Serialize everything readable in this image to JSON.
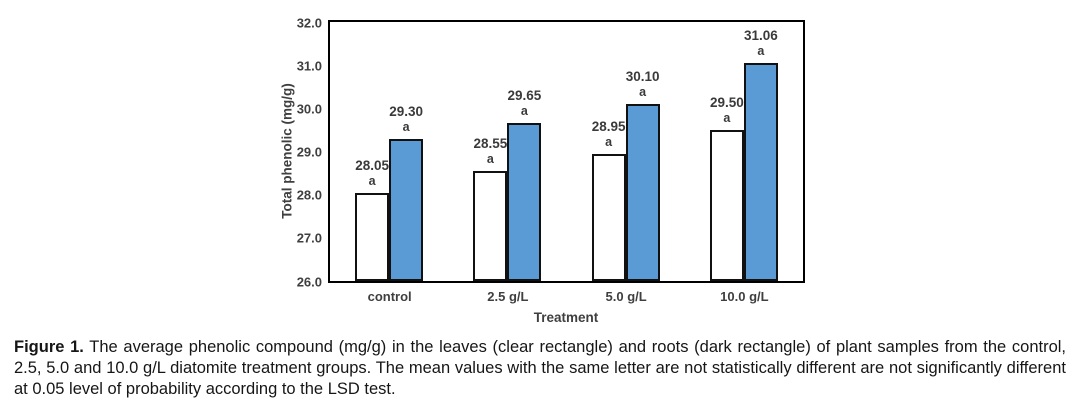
{
  "chart_data": {
    "type": "bar",
    "title": "",
    "xlabel": "Treatment",
    "ylabel": "Total phenolic (mg/g)",
    "ylim": [
      26.0,
      32.0
    ],
    "ytick_labels": [
      "26.0",
      "27.0",
      "28.0",
      "29.0",
      "30.0",
      "31.0",
      "32.0"
    ],
    "grid": false,
    "legend": false,
    "categories": [
      "control",
      "2.5 g/L",
      "5.0 g/L",
      "10.0 g/L"
    ],
    "series": [
      {
        "key": "leaves",
        "name": "leaves (clear rectangle)",
        "fill": "#FFFFFF",
        "values": [
          28.05,
          28.55,
          28.95,
          29.5
        ],
        "value_labels": [
          "28.05",
          "28.55",
          "28.95",
          "29.50"
        ],
        "letters": [
          "a",
          "a",
          "a",
          "a"
        ]
      },
      {
        "key": "roots",
        "name": "roots (dark rectangle)",
        "fill": "#5B9BD5",
        "values": [
          29.3,
          29.65,
          30.1,
          31.06
        ],
        "value_labels": [
          "29.30",
          "29.65",
          "30.10",
          "31.06"
        ],
        "letters": [
          "a",
          "a",
          "a",
          "a"
        ]
      }
    ],
    "colors": {
      "leaves_fill": "#FFFFFF",
      "roots_fill": "#5B9BD5",
      "bar_border": "#111111",
      "axis_text": "#3F3F3F",
      "plot_border": "#000000"
    }
  },
  "caption": {
    "label": "Figure 1.",
    "text": "The average phenolic compound (mg/g) in the leaves (clear rectangle) and roots (dark rectangle) of plant samples from the control, 2.5, 5.0 and 10.0 g/L diatomite treatment groups. The mean values with the same letter are not statistically different are not significantly different at 0.05 level of probability according to the LSD test."
  }
}
